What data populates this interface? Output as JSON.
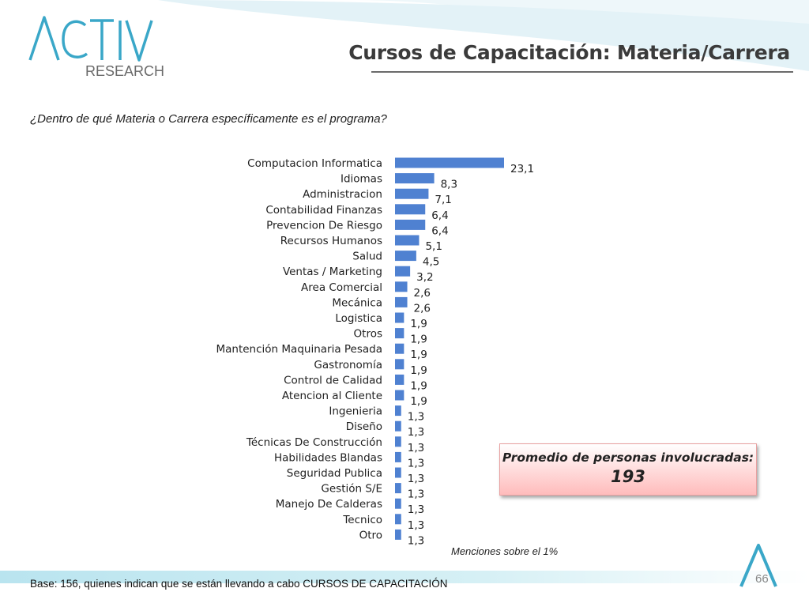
{
  "header": {
    "logo_text": "RESEARCH",
    "title": "Cursos de Capacitación: Materia/Carrera"
  },
  "question": "¿Dentro de qué Materia o Carrera específicamente es el programa?",
  "chart_data": {
    "type": "bar",
    "orientation": "horizontal",
    "categories": [
      "Computacion Informatica",
      "Idiomas",
      "Administracion",
      "Contabilidad Finanzas",
      "Prevencion De Riesgo",
      "Recursos Humanos",
      "Salud",
      "Ventas / Marketing",
      "Area Comercial",
      "Mecánica",
      "Logistica",
      "Otros",
      "Mantención Maquinaria Pesada",
      "Gastronomía",
      "Control de Calidad",
      "Atencion al Cliente",
      "Ingenieria",
      "Diseño",
      "Técnicas De Construcción",
      "Habilidades Blandas",
      "Seguridad Publica",
      "Gestión S/E",
      "Manejo De Calderas",
      "Tecnico",
      "Otro"
    ],
    "values": [
      23.1,
      8.3,
      7.1,
      6.4,
      6.4,
      5.1,
      4.5,
      3.2,
      2.6,
      2.6,
      1.9,
      1.9,
      1.9,
      1.9,
      1.9,
      1.9,
      1.3,
      1.3,
      1.3,
      1.3,
      1.3,
      1.3,
      1.3,
      1.3,
      1.3
    ],
    "value_labels": [
      "23,1",
      "8,3",
      "7,1",
      "6,4",
      "6,4",
      "5,1",
      "4,5",
      "3,2",
      "2,6",
      "2,6",
      "1,9",
      "1,9",
      "1,9",
      "1,9",
      "1,9",
      "1,9",
      "1,3",
      "1,3",
      "1,3",
      "1,3",
      "1,3",
      "1,3",
      "1,3",
      "1,3",
      "1,3"
    ],
    "bar_color": "#4f81d1",
    "grid": false
  },
  "average_box": {
    "label": "Promedio de personas involucradas:",
    "value": "193"
  },
  "note": "Menciones sobre el 1%",
  "footer": {
    "base": "Base: 156, quienes indican que se están llevando a cabo CURSOS DE CAPACITACIÓN",
    "page_number": "66"
  },
  "colors": {
    "accent": "#3aa7c8",
    "bar": "#4f81d1"
  }
}
